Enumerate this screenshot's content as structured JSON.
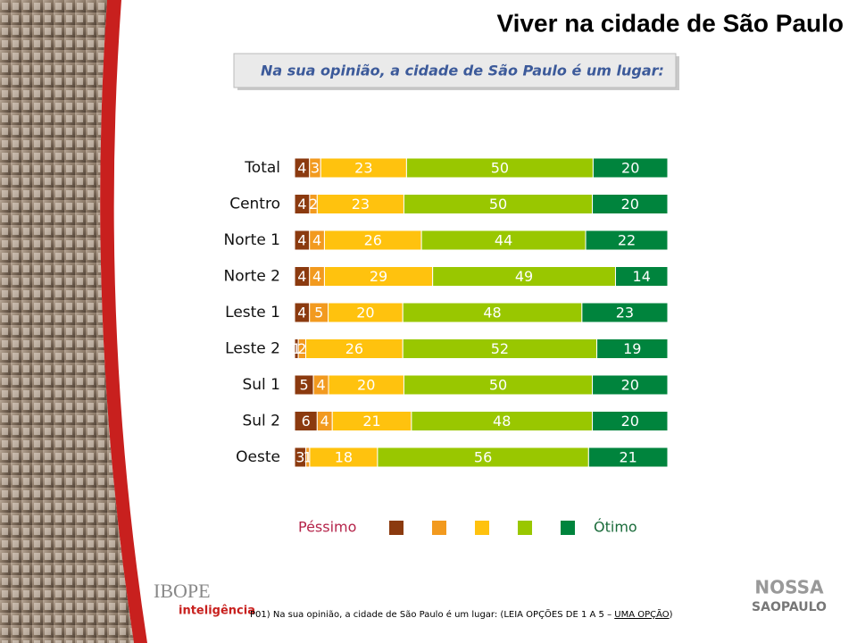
{
  "header": {
    "title": "Viver na cidade de São Paulo",
    "question": "Na sua opinião, a cidade de São Paulo é um lugar:"
  },
  "chart_data": {
    "type": "stacked-bar",
    "categories": [
      "Total",
      "Centro",
      "Norte 1",
      "Norte 2",
      "Leste 1",
      "Leste 2",
      "Sul 1",
      "Sul 2",
      "Oeste"
    ],
    "series": [
      {
        "color": "#8b3a0f",
        "values": [
          4,
          4,
          4,
          4,
          4,
          1,
          5,
          6,
          3
        ]
      },
      {
        "color": "#f29a1f",
        "values": [
          3,
          2,
          4,
          4,
          5,
          2,
          4,
          4,
          1
        ]
      },
      {
        "color": "#ffc20e",
        "values": [
          23,
          23,
          26,
          29,
          20,
          26,
          20,
          21,
          18
        ]
      },
      {
        "color": "#99c700",
        "values": [
          50,
          50,
          44,
          49,
          48,
          52,
          50,
          48,
          56
        ]
      },
      {
        "color": "#00843d",
        "values": [
          20,
          20,
          22,
          14,
          23,
          19,
          20,
          20,
          21
        ]
      }
    ],
    "legend": {
      "low": "Péssimo",
      "high": "Ótimo"
    }
  },
  "footer": {
    "note": "P01) Na sua opinião, a cidade de São Paulo é um lugar: (LEIA OPÇÕES DE 1 A 5 – ",
    "note_underlined": "UMA OPÇÃO",
    "note_end": ")",
    "logo_left": "IBOPE",
    "logo_left_sub": "inteligência",
    "logo_right_top": "NOSSA",
    "logo_right_bottom": "SAOPAULO"
  }
}
